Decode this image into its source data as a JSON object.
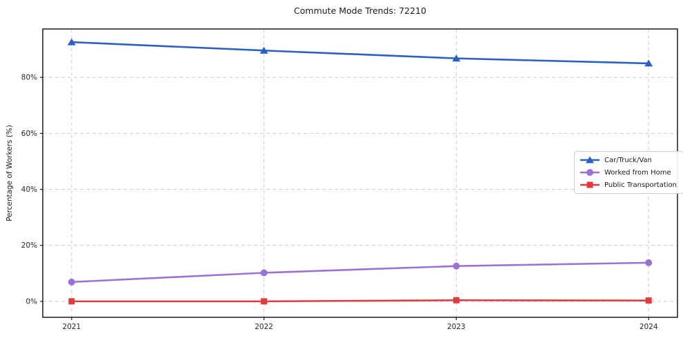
{
  "figure": {
    "title": "Commute Mode Trends: 72210"
  },
  "chart_data": {
    "type": "line",
    "title": "Commute Mode Trends: 72210",
    "xlabel": "",
    "ylabel": "Percentage of Workers (%)",
    "categories": [
      "2021",
      "2022",
      "2023",
      "2024"
    ],
    "series": [
      {
        "name": "Car/Truck/Van",
        "values": [
          92.6,
          89.6,
          86.8,
          85.0
        ],
        "color": "#2a5fc4",
        "marker": "triangle"
      },
      {
        "name": "Worked from Home",
        "values": [
          6.9,
          10.2,
          12.6,
          13.8
        ],
        "color": "#9b72d4",
        "marker": "circle"
      },
      {
        "name": "Public Transportation",
        "values": [
          0.0,
          0.0,
          0.4,
          0.3
        ],
        "color": "#e23b3e",
        "marker": "square"
      }
    ],
    "ylim": [
      -5.7,
      97.3
    ],
    "yticks": [
      0,
      20,
      40,
      60,
      80
    ],
    "ytick_labels": [
      "0%",
      "20%",
      "40%",
      "60%",
      "80%"
    ],
    "grid": true,
    "grid_style": "dashed",
    "grid_color": "#cccccc",
    "spine_color": "#1a1a1a",
    "legend_position": "center-right"
  }
}
